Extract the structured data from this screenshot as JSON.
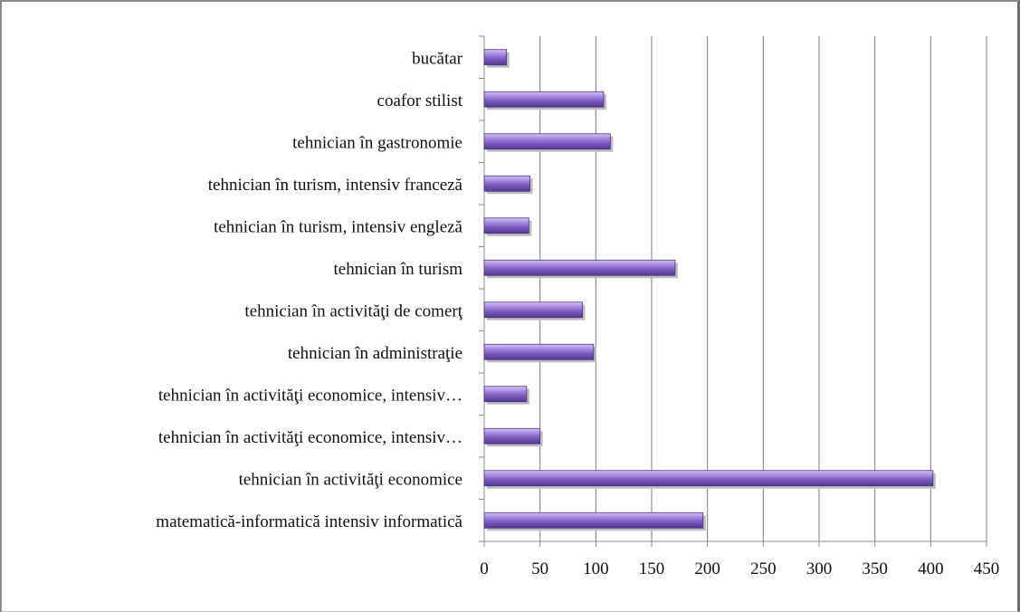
{
  "chart_data": {
    "type": "bar",
    "orientation": "horizontal",
    "title": "",
    "xlabel": "",
    "ylabel": "",
    "xlim": [
      0,
      450
    ],
    "xticks": [
      0,
      50,
      100,
      150,
      200,
      250,
      300,
      350,
      400,
      450
    ],
    "grid": "vertical",
    "legend": "none",
    "bar_color": "#7b5bbf",
    "categories": [
      "bucătar",
      "coafor stilist",
      "tehnician în gastronomie",
      "tehnician în turism, intensiv franceză",
      "tehnician în turism, intensiv engleză",
      "tehnician în turism",
      "tehnician în activităţi de comerţ",
      "tehnician în administraţie",
      "tehnician în activităţi economice, intensiv…",
      "tehnician în activităţi economice, intensiv…",
      "tehnician în activităţi economice",
      "matematică-informatică intensiv informatică"
    ],
    "values": [
      20,
      107,
      113,
      41,
      40,
      171,
      88,
      98,
      38,
      50,
      402,
      196
    ]
  }
}
